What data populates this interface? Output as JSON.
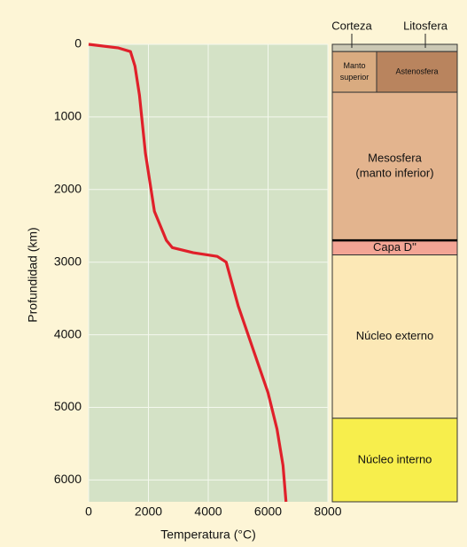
{
  "chart_data": {
    "type": "line",
    "xlabel": "Temperatura (°C)",
    "ylabel": "Profundidad (km)",
    "x": [
      0,
      1000,
      1400,
      1550,
      1700,
      1900,
      2200,
      2600,
      2800,
      3500,
      4300,
      4600,
      5000,
      5500,
      6000,
      6300,
      6500,
      6600
    ],
    "series": [
      {
        "name": "Temperatura",
        "color": "#e0202a",
        "values": [
          0,
          50,
          100,
          300,
          700,
          1500,
          2300,
          2700,
          2800,
          2870,
          2920,
          3000,
          3600,
          4200,
          4800,
          5300,
          5800,
          6300
        ]
      }
    ],
    "xlim": [
      0,
      8000
    ],
    "xticks": [
      0,
      2000,
      4000,
      6000,
      8000
    ],
    "ylim": [
      0,
      6300
    ],
    "yticks": [
      0,
      1000,
      2000,
      3000,
      4000,
      5000,
      6000
    ],
    "y_inverted": true,
    "grid": true
  },
  "layers": [
    {
      "label": [
        "Corteza"
      ],
      "top": 0,
      "bottom": 100,
      "color": "#cbc8b4"
    },
    {
      "label": [
        "Manto",
        "superior"
      ],
      "top": 100,
      "bottom": 660,
      "color": "#d9ab80"
    },
    {
      "label": [
        "Astenosfera"
      ],
      "top": 100,
      "bottom": 660,
      "color": "#b9845e"
    },
    {
      "label": [
        "Mesosfera",
        "(manto inferior)"
      ],
      "top": 660,
      "bottom": 2700,
      "color": "#e3b48e"
    },
    {
      "label": [
        "Capa D''"
      ],
      "top": 2700,
      "bottom": 2900,
      "color": "#f3a595"
    },
    {
      "label": [
        "Núcleo externo"
      ],
      "top": 2900,
      "bottom": 5150,
      "color": "#fce8b6"
    },
    {
      "label": [
        "Núcleo interno"
      ],
      "top": 5150,
      "bottom": 6300,
      "color": "#f7ee4c"
    }
  ],
  "litosfera_label": "Litosfera"
}
